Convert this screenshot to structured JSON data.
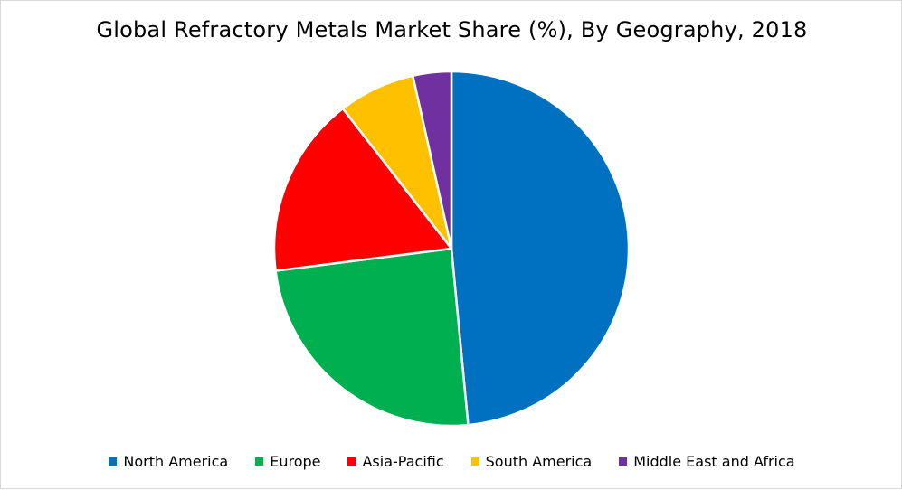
{
  "chart_data": {
    "type": "pie",
    "title": "Global Refractory Metals Market Share (%), By Geography, 2018",
    "categories": [
      "North America",
      "Europe",
      "Asia-Pacific",
      "South America",
      "Middle East and Africa"
    ],
    "values": [
      48.5,
      24.5,
      16.5,
      7.0,
      3.5
    ],
    "colors": [
      "#0070C0",
      "#00B050",
      "#FF0000",
      "#FFC000",
      "#7030A0"
    ],
    "start_angle_deg": 0,
    "direction": "clockwise",
    "legend_position": "bottom"
  }
}
